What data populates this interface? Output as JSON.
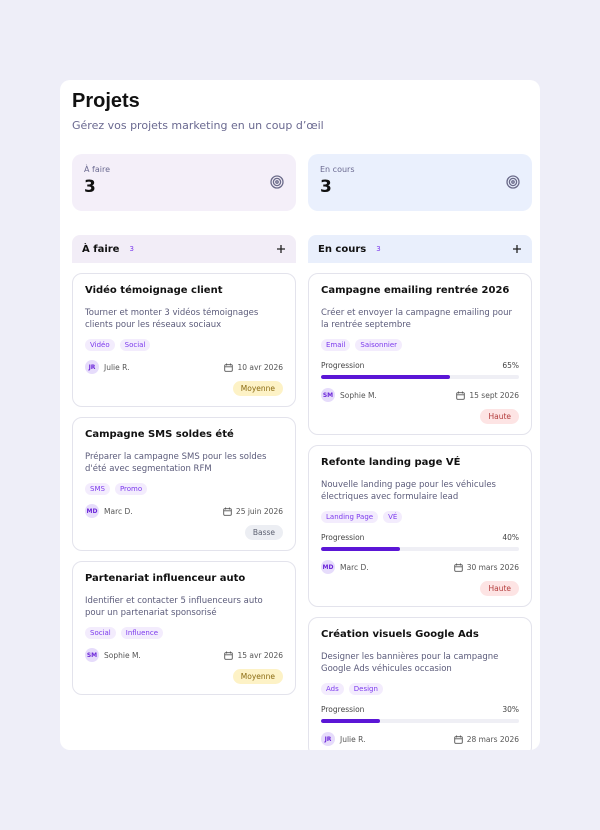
{
  "header": {
    "title": "Projets",
    "subtitle": "Gérez vos projets marketing en un coup d’œil"
  },
  "stats": [
    {
      "label": "À faire",
      "value": 3,
      "bg": "#f4eff9"
    },
    {
      "label": "En cours",
      "value": 3,
      "bg": "#eaf0fd"
    }
  ],
  "columns": [
    {
      "title": "À faire",
      "count": 3,
      "bg": "#f2edf7",
      "cards": [
        {
          "title": "Vidéo témoignage client",
          "description": "Tourner et monter 3 vidéos témoignages clients pour les réseaux sociaux",
          "tags": [
            "Vidéo",
            "Social"
          ],
          "initials": "JR",
          "assignee": "Julie R.",
          "date": "10 avr 2026",
          "priority": "Moyenne",
          "priority_colors": [
            "#fdf2c6",
            "#8a6a10"
          ]
        },
        {
          "title": "Campagne SMS soldes été",
          "description": "Préparer la campagne SMS pour les soldes d'été avec segmentation RFM",
          "tags": [
            "SMS",
            "Promo"
          ],
          "initials": "MD",
          "assignee": "Marc D.",
          "date": "25 juin 2026",
          "priority": "Basse",
          "priority_colors": [
            "#eceef3",
            "#5c6070"
          ]
        },
        {
          "title": "Partenariat influenceur auto",
          "description": "Identifier et contacter 5 influenceurs auto pour un partenariat sponsorisé",
          "tags": [
            "Social",
            "Influence"
          ],
          "initials": "SM",
          "assignee": "Sophie M.",
          "date": "15 avr 2026",
          "priority": "Moyenne",
          "priority_colors": [
            "#fdf2c6",
            "#8a6a10"
          ]
        }
      ]
    },
    {
      "title": "En cours",
      "count": 3,
      "bg": "#e9effc",
      "cards": [
        {
          "title": "Campagne emailing rentrée 2026",
          "description": "Créer et envoyer la campagne emailing pour la rentrée septembre",
          "tags": [
            "Email",
            "Saisonnier"
          ],
          "progress_title": "Progression",
          "progress": 65,
          "progress_label": "65%",
          "initials": "SM",
          "assignee": "Sophie M.",
          "date": "15 sept 2026",
          "priority": "Haute",
          "priority_colors": [
            "#fde4e4",
            "#b33c3c"
          ]
        },
        {
          "title": "Refonte landing page VÉ",
          "description": "Nouvelle landing page pour les véhicules électriques avec formulaire lead",
          "tags": [
            "Landing Page",
            "VÉ"
          ],
          "progress_title": "Progression",
          "progress": 40,
          "progress_label": "40%",
          "initials": "MD",
          "assignee": "Marc D.",
          "date": "30 mars 2026",
          "priority": "Haute",
          "priority_colors": [
            "#fde4e4",
            "#b33c3c"
          ]
        },
        {
          "title": "Création visuels Google Ads",
          "description": "Designer les bannières pour la campagne Google Ads véhicules occasion",
          "tags": [
            "Ads",
            "Design"
          ],
          "progress_title": "Progression",
          "progress": 30,
          "progress_label": "30%",
          "initials": "JR",
          "assignee": "Julie R.",
          "date": "28 mars 2026"
        }
      ]
    }
  ]
}
